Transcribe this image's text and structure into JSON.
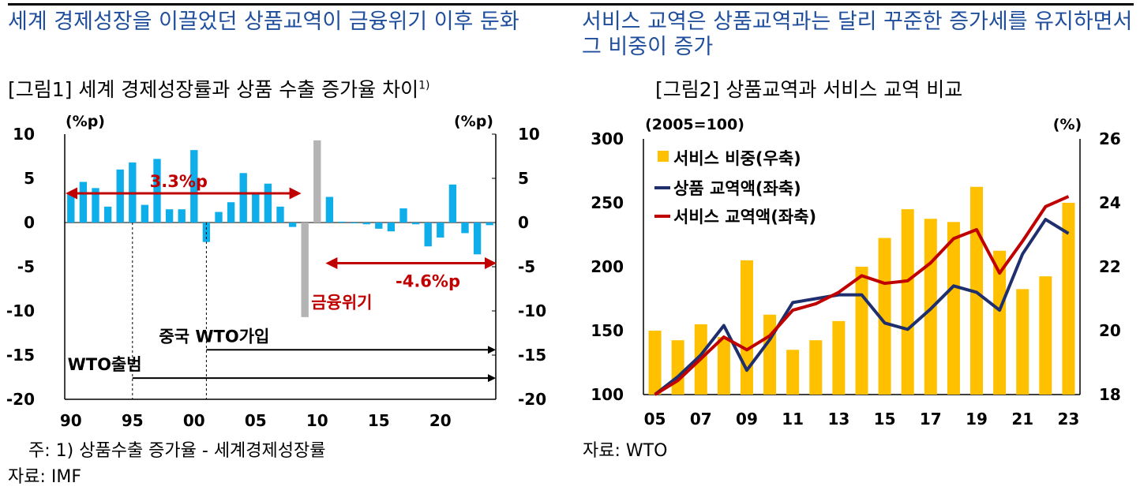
{
  "headings": {
    "left": "세계 경제성장을 이끌었던 상품교역이 금융위기 이후 둔화",
    "right": "서비스 교역은 상품교역과는 달리 꾸준한 증가세를 유지하면서 그 비중이 증가"
  },
  "figure1": {
    "title": "[그림1] 세계 경제성장률과 상품 수출 증가율 차이",
    "title_sup": "1)",
    "note": "주: 1) 상품수출 증가율 - 세계경제성장률",
    "source": "자료: IMF"
  },
  "figure2": {
    "title": "[그림2] 상품교역과 서비스 교역 비교",
    "source": "자료: WTO"
  },
  "chart_data": [
    {
      "type": "bar",
      "y_unit_left": "(%p)",
      "y_unit_right": "(%p)",
      "ylim": [
        -20,
        10
      ],
      "yticks": [
        "10",
        "5",
        "0",
        "-5",
        "-10",
        "-15",
        "-20"
      ],
      "x_labels": [
        "90",
        "95",
        "00",
        "05",
        "10",
        "15",
        "20"
      ],
      "x_label_years": [
        1990,
        1995,
        2000,
        2005,
        2010,
        2015,
        2020
      ],
      "years": [
        1990,
        1991,
        1992,
        1993,
        1994,
        1995,
        1996,
        1997,
        1998,
        1999,
        2000,
        2001,
        2002,
        2003,
        2004,
        2005,
        2006,
        2007,
        2008,
        2009,
        2010,
        2011,
        2012,
        2013,
        2014,
        2015,
        2016,
        2017,
        2018,
        2019,
        2020,
        2021,
        2022,
        2023,
        2024
      ],
      "values": [
        3.2,
        4.6,
        3.9,
        1.8,
        6.0,
        6.8,
        2.0,
        7.2,
        1.5,
        1.5,
        8.2,
        -2.2,
        1.2,
        2.3,
        5.6,
        3.2,
        4.4,
        1.8,
        -0.5,
        -10.7,
        9.3,
        2.9,
        0.1,
        0.0,
        -0.2,
        -0.7,
        -1.0,
        1.6,
        -0.2,
        -2.7,
        -1.7,
        4.3,
        -1.2,
        -3.6,
        -0.3
      ],
      "highlight_years": [
        2009,
        2010
      ],
      "colors": {
        "bar": "#0eaeea",
        "highlight": "#b4b4b4",
        "annotation": "#c00000",
        "arrow": "#000000"
      },
      "annotations": {
        "avg_before": "3.3%p",
        "avg_after": "-4.6%p",
        "crisis": "금융위기",
        "china_wto": "중국 WTO가입",
        "wto_launch": "WTO출범"
      }
    },
    {
      "type": "bar+line",
      "y_unit_left": "(2005=100)",
      "y_unit_right": "(%)",
      "ylim_left": [
        100,
        300
      ],
      "yticks_left": [
        "300",
        "250",
        "200",
        "150",
        "100"
      ],
      "ylim_right": [
        18,
        26
      ],
      "yticks_right": [
        "26",
        "24",
        "22",
        "20",
        "18"
      ],
      "x_labels": [
        "05",
        "07",
        "09",
        "11",
        "13",
        "15",
        "17",
        "19",
        "21",
        "23"
      ],
      "x_label_years": [
        2005,
        2007,
        2009,
        2011,
        2013,
        2015,
        2017,
        2019,
        2021,
        2023
      ],
      "years": [
        2005,
        2006,
        2007,
        2008,
        2009,
        2010,
        2011,
        2012,
        2013,
        2014,
        2015,
        2016,
        2017,
        2018,
        2019,
        2020,
        2021,
        2022,
        2023
      ],
      "legend": [
        "서비스 비중(우축)",
        "상품 교역액(좌축)",
        "서비스 교역액(좌축)"
      ],
      "series": [
        {
          "name": "서비스 비중(우축)",
          "type": "bar",
          "axis": "right",
          "color": "#ffc000",
          "values": [
            20.0,
            19.7,
            20.2,
            19.8,
            22.2,
            20.5,
            19.4,
            19.7,
            20.3,
            22.0,
            22.9,
            23.8,
            23.5,
            23.4,
            24.5,
            22.5,
            21.3,
            21.7,
            24.0
          ]
        },
        {
          "name": "상품 교역액(좌축)",
          "type": "line",
          "axis": "left",
          "color": "#1f2f6e",
          "values": [
            100,
            114,
            131,
            154,
            119,
            143,
            172,
            175,
            178,
            178,
            156,
            151,
            167,
            185,
            180,
            166,
            210,
            237,
            226
          ]
        },
        {
          "name": "서비스 교역액(좌축)",
          "type": "line",
          "axis": "left",
          "color": "#c00000",
          "values": [
            100,
            111,
            128,
            145,
            135,
            146,
            166,
            171,
            180,
            193,
            187,
            189,
            203,
            222,
            229,
            195,
            220,
            247,
            255
          ]
        }
      ]
    }
  ]
}
